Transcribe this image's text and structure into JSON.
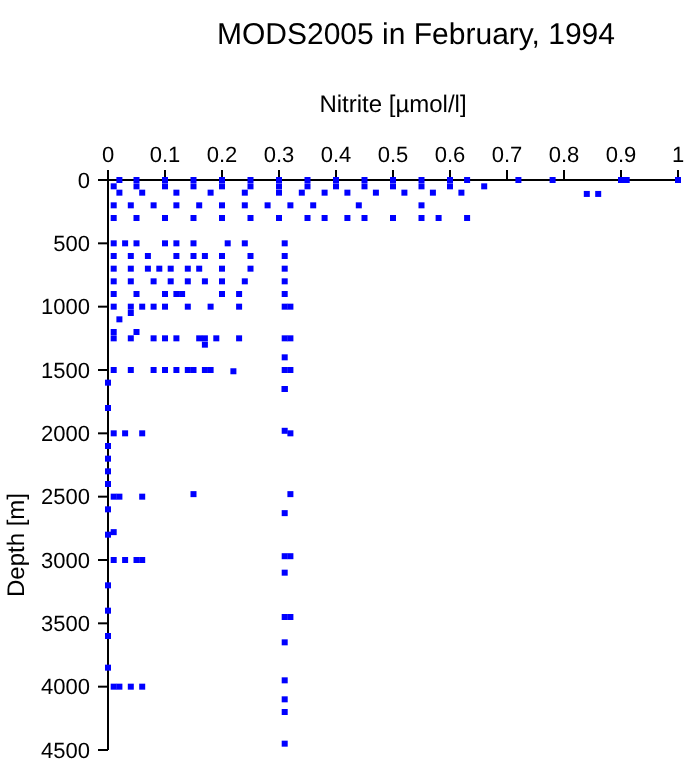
{
  "chart_data": {
    "type": "scatter",
    "title": "MODS2005 in February, 1994",
    "xlabel": "Nitrite [µmol/l]",
    "ylabel": "Depth [m]",
    "xlim": [
      0,
      1
    ],
    "xticks": [
      0,
      0.1,
      0.2,
      0.3,
      0.4,
      0.5,
      0.6,
      0.7,
      0.8,
      0.9,
      1
    ],
    "ylim": [
      4500,
      0
    ],
    "yticks": [
      0,
      500,
      1000,
      1500,
      2000,
      2500,
      3000,
      3500,
      4000,
      4500
    ],
    "marker": "square",
    "grid": false,
    "series": [
      {
        "color": "#0000ff",
        "x": [
          0.02,
          0.05,
          0.1,
          0.15,
          0.2,
          0.25,
          0.3,
          0.35,
          0.4,
          0.45,
          0.5,
          0.55,
          0.6,
          0.63,
          0.72,
          0.78,
          0.9,
          0.91,
          1.0,
          0.01,
          0.05,
          0.1,
          0.15,
          0.2,
          0.25,
          0.3,
          0.35,
          0.4,
          0.45,
          0.5,
          0.55,
          0.6,
          0.66,
          0.02,
          0.06,
          0.12,
          0.18,
          0.24,
          0.3,
          0.34,
          0.38,
          0.42,
          0.47,
          0.52,
          0.57,
          0.62,
          0.84,
          0.86,
          0.01,
          0.04,
          0.08,
          0.12,
          0.16,
          0.2,
          0.24,
          0.28,
          0.32,
          0.36,
          0.44,
          0.55,
          0.01,
          0.05,
          0.1,
          0.15,
          0.2,
          0.25,
          0.3,
          0.35,
          0.38,
          0.42,
          0.45,
          0.5,
          0.55,
          0.58,
          0.63,
          0.01,
          0.03,
          0.05,
          0.1,
          0.12,
          0.15,
          0.21,
          0.24,
          0.31,
          0.01,
          0.04,
          0.07,
          0.12,
          0.15,
          0.17,
          0.2,
          0.25,
          0.31,
          0.01,
          0.04,
          0.07,
          0.09,
          0.11,
          0.14,
          0.16,
          0.2,
          0.25,
          0.31,
          0.01,
          0.04,
          0.08,
          0.11,
          0.14,
          0.17,
          0.2,
          0.24,
          0.31,
          0.01,
          0.05,
          0.1,
          0.12,
          0.13,
          0.2,
          0.23,
          0.31,
          0.01,
          0.04,
          0.06,
          0.08,
          0.1,
          0.14,
          0.18,
          0.23,
          0.31,
          0.32,
          0.04,
          0.02,
          0.01,
          0.05,
          0.01,
          0.04,
          0.08,
          0.1,
          0.12,
          0.16,
          0.17,
          0.19,
          0.23,
          0.31,
          0.32,
          0.17,
          0.31,
          0.01,
          0.04,
          0.08,
          0.1,
          0.12,
          0.14,
          0.15,
          0.17,
          0.18,
          0.22,
          0.31,
          0.32,
          0.31,
          0,
          0.31,
          0,
          0.01,
          0.03,
          0.06,
          0.31,
          0.32,
          0,
          0,
          0,
          0,
          0.01,
          0.02,
          0.06,
          0.15,
          0.32,
          0,
          0.31,
          0,
          0.01,
          0.01,
          0.03,
          0.05,
          0.06,
          0.31,
          0.32,
          0.31,
          0,
          0,
          0.31,
          0.32,
          0,
          0.31,
          0,
          0.31,
          0.01,
          0.02,
          0.04,
          0.06,
          0.31,
          0.31,
          0.31
        ],
        "values": [
          0,
          0,
          0,
          0,
          0,
          0,
          0,
          0,
          0,
          0,
          0,
          0,
          0,
          0,
          0,
          0,
          0,
          0,
          0,
          50,
          50,
          50,
          50,
          50,
          50,
          50,
          50,
          50,
          50,
          50,
          50,
          50,
          50,
          100,
          100,
          100,
          100,
          100,
          100,
          100,
          100,
          100,
          100,
          100,
          100,
          100,
          110,
          110,
          200,
          200,
          200,
          200,
          200,
          200,
          200,
          200,
          200,
          200,
          200,
          200,
          300,
          300,
          300,
          300,
          300,
          300,
          300,
          300,
          300,
          300,
          300,
          300,
          300,
          300,
          300,
          500,
          500,
          500,
          500,
          500,
          500,
          500,
          500,
          500,
          600,
          600,
          600,
          600,
          600,
          600,
          600,
          600,
          600,
          700,
          700,
          700,
          700,
          700,
          700,
          700,
          700,
          700,
          700,
          800,
          800,
          800,
          800,
          800,
          800,
          800,
          800,
          800,
          900,
          900,
          900,
          900,
          900,
          900,
          900,
          900,
          1000,
          1000,
          1000,
          1000,
          1000,
          1000,
          1000,
          1000,
          1000,
          1000,
          1050,
          1100,
          1200,
          1200,
          1250,
          1250,
          1250,
          1250,
          1250,
          1250,
          1250,
          1250,
          1250,
          1250,
          1250,
          1300,
          1400,
          1500,
          1500,
          1500,
          1500,
          1500,
          1500,
          1500,
          1500,
          1500,
          1510,
          1500,
          1500,
          1650,
          1600,
          1650,
          1800,
          2000,
          2000,
          2000,
          1980,
          2000,
          2100,
          2200,
          2300,
          2400,
          2500,
          2500,
          2500,
          2480,
          2480,
          2600,
          2630,
          2800,
          2780,
          3000,
          3000,
          3000,
          3000,
          2970,
          2970,
          3100,
          3200,
          3400,
          3450,
          3450,
          3600,
          3650,
          3850,
          3950,
          4000,
          4000,
          4000,
          4000,
          4100,
          4200,
          4450
        ]
      }
    ]
  }
}
